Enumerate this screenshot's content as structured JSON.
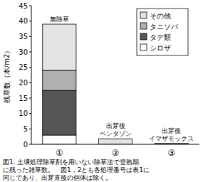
{
  "chart_data": {
    "type": "bar",
    "stacked": true,
    "y_label": "残草数（本/m2）",
    "categories": [
      "①",
      "②",
      "③"
    ],
    "series": [
      {
        "name": "シロザ",
        "color": "#ffffff",
        "values": [
          3,
          0,
          0
        ]
      },
      {
        "name": "タデ類",
        "color": "#555555",
        "values": [
          14.5,
          0,
          0
        ]
      },
      {
        "name": "タニソバ",
        "color": "#b0b0b0",
        "values": [
          6.5,
          0,
          0
        ]
      },
      {
        "name": "その他",
        "color": "#e4e4e4",
        "values": [
          15,
          1.8,
          0.3
        ]
      }
    ],
    "ylim": [
      0,
      45
    ],
    "yticks": [
      0,
      5,
      10,
      15,
      20,
      25,
      30,
      35,
      40,
      45
    ],
    "grid": false,
    "legend": "upper right",
    "annotations": [
      {
        "category": 0,
        "lines": [
          "無除草"
        ]
      },
      {
        "category": 1,
        "lines": [
          "出芽後",
          "ベンタゾン"
        ]
      },
      {
        "category": 2,
        "lines": [
          "出芽後",
          "イマザモックス"
        ]
      }
    ],
    "caption": [
      "図1. 土壌処理除草剤を用いない除草法で登熟期",
      "に残った雑草数。　図1，2とも各処理番号は表1に",
      "同じであり、出芽直後の個体は除く。"
    ]
  }
}
